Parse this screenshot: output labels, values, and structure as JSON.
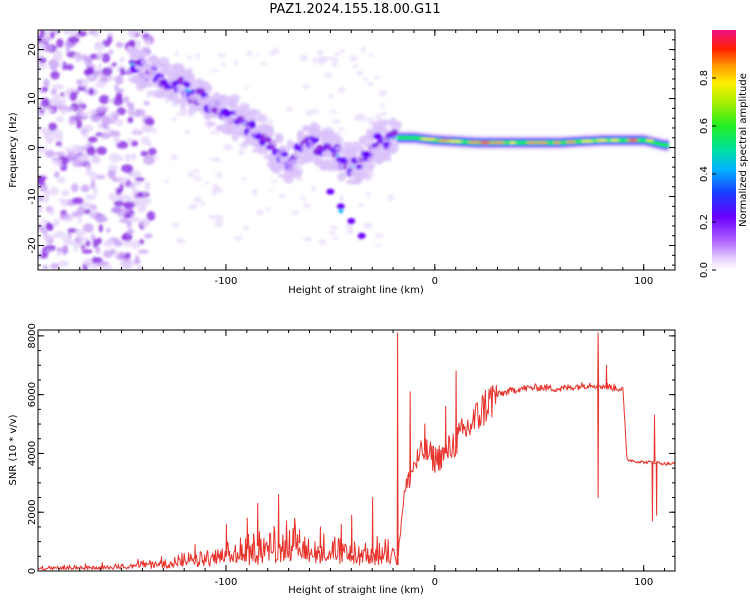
{
  "title": "PAZ1.2024.155.18.00.G11",
  "colorbar": {
    "label": "Normalized spectral amplitude",
    "ticks": [
      "0.0",
      "0.2",
      "0.4",
      "0.6",
      "0.8"
    ],
    "range": [
      0,
      1
    ]
  },
  "chart_data": [
    {
      "type": "heatmap",
      "xlabel": "Height of straight line (km)",
      "ylabel": "Frequency (Hz)",
      "xlim": [
        -190,
        115
      ],
      "ylim": [
        -25,
        24
      ],
      "xticks": [
        "-100",
        "0",
        "100"
      ],
      "yticks": [
        "20",
        "10",
        "0",
        "-10",
        "-20"
      ],
      "ridge": {
        "x": [
          -145,
          -135,
          -125,
          -115,
          -105,
          -95,
          -85,
          -78,
          -70,
          -60,
          -52,
          -45,
          -40,
          -33,
          -28,
          -20,
          -10,
          0,
          20,
          40,
          60,
          80,
          100,
          110
        ],
        "y": [
          17,
          15,
          13,
          11,
          8,
          6,
          3,
          0,
          -3,
          1,
          0,
          -2,
          -4,
          -2,
          1,
          2,
          2,
          1.5,
          1,
          1,
          1,
          1.5,
          1.5,
          0.5
        ]
      },
      "branch": {
        "x": [
          -50,
          -45,
          -40,
          -35
        ],
        "y": [
          -9,
          -12,
          -15,
          -18
        ]
      }
    },
    {
      "type": "line",
      "xlabel": "Height of straight line (km)",
      "ylabel": "SNR (10 * v/v)",
      "xlim": [
        -190,
        115
      ],
      "ylim": [
        0,
        8200
      ],
      "xticks": [
        "-100",
        "0",
        "100"
      ],
      "yticks": [
        "0",
        "2000",
        "4000",
        "6000",
        "8000"
      ],
      "color": "#e8332c",
      "series": [
        {
          "x": [
            -190,
            -160,
            -140,
            -120,
            -100,
            -90,
            -80,
            -70,
            -60,
            -50,
            -40,
            -30,
            -25,
            -20,
            -18,
            -15,
            -13,
            -10,
            -5,
            0,
            5,
            10,
            15,
            20,
            25,
            30,
            40,
            50,
            60,
            70,
            75,
            80,
            85,
            90,
            92,
            95,
            100,
            105,
            110,
            115
          ],
          "y": [
            100,
            150,
            250,
            350,
            550,
            750,
            950,
            1100,
            800,
            750,
            600,
            600,
            700,
            800,
            200,
            2500,
            3000,
            3600,
            4100,
            3800,
            4000,
            4400,
            4800,
            5200,
            5700,
            6000,
            6200,
            6250,
            6200,
            6300,
            6350,
            6300,
            6250,
            6200,
            3800,
            3750,
            3700,
            3700,
            3650,
            3650
          ]
        }
      ],
      "spikes": [
        {
          "x": -115,
          "y": 900
        },
        {
          "x": -100,
          "y": 1600
        },
        {
          "x": -90,
          "y": 1800
        },
        {
          "x": -85,
          "y": 2300
        },
        {
          "x": -75,
          "y": 2600
        },
        {
          "x": -65,
          "y": 1400
        },
        {
          "x": -55,
          "y": 1500
        },
        {
          "x": -45,
          "y": 1600
        },
        {
          "x": -40,
          "y": 1900
        },
        {
          "x": -30,
          "y": 2500
        },
        {
          "x": -18,
          "y": 8100
        },
        {
          "x": -12,
          "y": 6100
        },
        {
          "x": -5,
          "y": 5000
        },
        {
          "x": 5,
          "y": 5600
        },
        {
          "x": 10,
          "y": 6800
        },
        {
          "x": 78,
          "y": 8100
        },
        {
          "x": 82,
          "y": 7000
        },
        {
          "x": 105,
          "y": 5300
        }
      ],
      "dips": [
        {
          "x": 78,
          "y": 2500
        },
        {
          "x": 104,
          "y": 1700
        },
        {
          "x": 106,
          "y": 1900
        }
      ]
    }
  ]
}
